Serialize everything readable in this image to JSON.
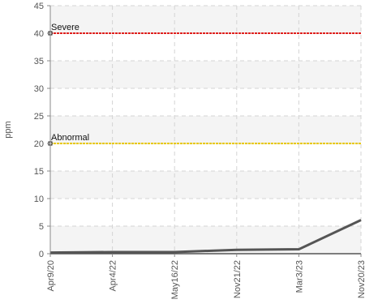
{
  "chart_data": {
    "type": "line",
    "title": "",
    "xlabel": "",
    "ylabel": "ppm",
    "ylim": [
      0,
      45
    ],
    "yticks": [
      0,
      5,
      10,
      15,
      20,
      25,
      30,
      35,
      40,
      45
    ],
    "grid": true,
    "categories": [
      "Apr9/20",
      "Apr4/22",
      "May16/22",
      "Nov21/22",
      "Mar3/23",
      "Nov20/23"
    ],
    "series": [
      {
        "values": [
          0.2,
          0.3,
          0.3,
          0.7,
          0.8,
          6.1
        ],
        "color": "#555555"
      }
    ],
    "thresholds": [
      {
        "label": "Severe",
        "value": 40,
        "color": "#e0201e"
      },
      {
        "label": "Abnormal",
        "value": 20,
        "color": "#e8c800"
      }
    ],
    "band_colors": [
      "#f4f4f4",
      "#ffffff"
    ]
  }
}
